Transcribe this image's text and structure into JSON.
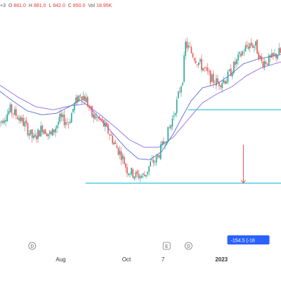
{
  "header": {
    "suffix": "+3",
    "open_label": "O",
    "open": "881.0",
    "high_label": "H",
    "high": "881.0",
    "low_label": "L",
    "low": "842.0",
    "close_label": "C",
    "close": "850.0",
    "vol_label": "Vol",
    "vol": "18.95K"
  },
  "measure": {
    "label": "-154.5 (-18"
  },
  "events": [
    {
      "code": "D",
      "date": "2022-07-04"
    },
    {
      "code": "E",
      "date": "2022-11-09"
    },
    {
      "code": "D",
      "date": "2022-11-30"
    }
  ],
  "colors": {
    "up": "#26a69a",
    "down": "#ef5350",
    "ma_fast": "#5b6bd6",
    "ma_slow": "#8d6be8",
    "hline": "#26c6da",
    "measure": "#ef5350",
    "label_bg": "#2962ff"
  },
  "chart_data": {
    "type": "candlestick",
    "x_tick_labels": [
      {
        "text": "Aug",
        "date": "2022-08-01",
        "bold": false
      },
      {
        "text": "Oct",
        "date": "2022-10-03",
        "bold": false
      },
      {
        "text": "7",
        "date": "2022-11-07",
        "bold": false
      },
      {
        "text": "2023",
        "date": "2023-01-02",
        "bold": true
      }
    ],
    "ylim": [
      600,
      1080
    ],
    "horizontal_lines": [
      {
        "price": 860,
        "from": "2022-11-30",
        "to": "2023-01-25"
      },
      {
        "price": 713,
        "from": "2022-08-24",
        "to": "2023-01-25"
      }
    ],
    "measure": {
      "from_price": 790,
      "to_price": 713,
      "date": "2023-01-23"
    },
    "series": [
      {
        "name": "",
        "role": "price",
        "anchors": [
          [
            0,
            832
          ],
          [
            8,
            860
          ],
          [
            14,
            845
          ],
          [
            18,
            830
          ],
          [
            24,
            800
          ],
          [
            30,
            825
          ],
          [
            36,
            808
          ],
          [
            42,
            842
          ],
          [
            48,
            835
          ],
          [
            52,
            870
          ],
          [
            56,
            893
          ],
          [
            60,
            880
          ],
          [
            64,
            848
          ],
          [
            70,
            838
          ],
          [
            76,
            812
          ],
          [
            80,
            788
          ],
          [
            84,
            770
          ],
          [
            88,
            740
          ],
          [
            94,
            728
          ],
          [
            100,
            728
          ],
          [
            104,
            752
          ],
          [
            108,
            760
          ],
          [
            114,
            800
          ],
          [
            118,
            830
          ],
          [
            122,
            875
          ],
          [
            126,
            925
          ],
          [
            128,
            992
          ],
          [
            132,
            975
          ],
          [
            136,
            958
          ],
          [
            140,
            944
          ],
          [
            146,
            920
          ],
          [
            150,
            914
          ],
          [
            156,
            922
          ],
          [
            162,
            952
          ],
          [
            168,
            980
          ],
          [
            172,
            992
          ],
          [
            176,
            988
          ],
          [
            180,
            955
          ],
          [
            186,
            960
          ],
          [
            192,
            975
          ],
          [
            196,
            968
          ]
        ]
      },
      {
        "name": "",
        "role": "ma_fast",
        "anchors": [
          [
            0,
            900
          ],
          [
            10,
            878
          ],
          [
            20,
            858
          ],
          [
            30,
            850
          ],
          [
            40,
            853
          ],
          [
            50,
            868
          ],
          [
            56,
            880
          ],
          [
            62,
            868
          ],
          [
            72,
            835
          ],
          [
            80,
            808
          ],
          [
            88,
            782
          ],
          [
            96,
            762
          ],
          [
            104,
            760
          ],
          [
            112,
            776
          ],
          [
            120,
            812
          ],
          [
            126,
            845
          ],
          [
            132,
            877
          ],
          [
            140,
            904
          ],
          [
            150,
            912
          ],
          [
            158,
            928
          ],
          [
            168,
            952
          ],
          [
            178,
            962
          ],
          [
            196,
            972
          ]
        ]
      },
      {
        "name": "",
        "role": "ma_slow",
        "anchors": [
          [
            0,
            912
          ],
          [
            14,
            885
          ],
          [
            26,
            866
          ],
          [
            38,
            860
          ],
          [
            50,
            868
          ],
          [
            60,
            872
          ],
          [
            70,
            850
          ],
          [
            80,
            826
          ],
          [
            90,
            800
          ],
          [
            100,
            785
          ],
          [
            110,
            785
          ],
          [
            120,
            805
          ],
          [
            130,
            840
          ],
          [
            140,
            874
          ],
          [
            150,
            892
          ],
          [
            160,
            906
          ],
          [
            170,
            928
          ],
          [
            180,
            944
          ],
          [
            196,
            958
          ]
        ]
      }
    ]
  }
}
